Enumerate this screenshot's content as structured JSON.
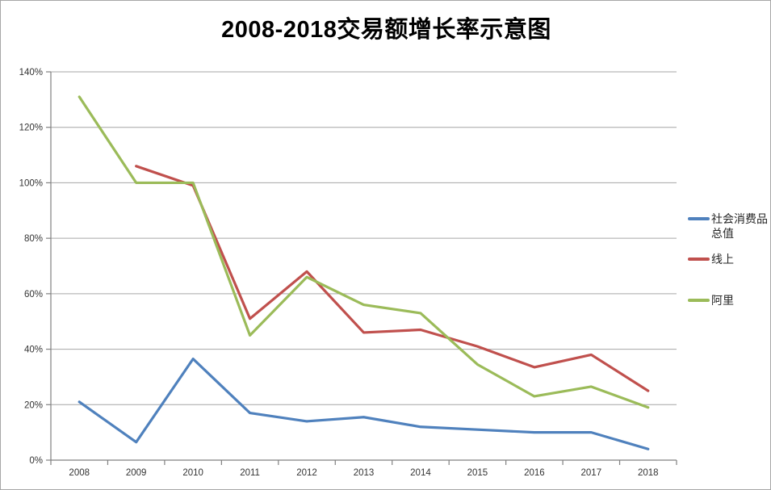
{
  "window": {
    "background": "#ffffff",
    "frame_border_color": "#a6a6a6"
  },
  "chart_data": {
    "type": "line",
    "title": "2008-2018交易额增长率示意图",
    "categories": [
      "2008",
      "2009",
      "2010",
      "2011",
      "2012",
      "2013",
      "2014",
      "2015",
      "2016",
      "2017",
      "2018"
    ],
    "series": [
      {
        "name": "社会消费品总值",
        "color": "#4f81bd",
        "values": [
          21,
          6.5,
          36.5,
          17,
          14,
          15.5,
          12,
          11,
          10,
          10,
          4
        ]
      },
      {
        "name": "线上",
        "color": "#c0504d",
        "values": [
          null,
          106,
          99,
          51,
          68,
          46,
          47,
          41,
          33.5,
          38,
          25
        ]
      },
      {
        "name": "阿里",
        "color": "#9bbb59",
        "values": [
          131,
          100,
          100,
          45,
          66,
          56,
          53,
          34.5,
          23,
          26.5,
          19
        ]
      }
    ],
    "y_axis": {
      "min": 0,
      "max": 140,
      "step": 20,
      "unit": "%",
      "tick_labels": [
        "0%",
        "20%",
        "40%",
        "60%",
        "80%",
        "100%",
        "120%",
        "140%"
      ]
    },
    "x_axis": {
      "tick_labels": [
        "2008",
        "2009",
        "2010",
        "2011",
        "2012",
        "2013",
        "2014",
        "2015",
        "2016",
        "2017",
        "2018"
      ]
    },
    "grid": true,
    "legend_position": "right",
    "gridline_color": "#a6a6a6",
    "axis_color": "#808080",
    "tick_label_color": "#333333"
  }
}
